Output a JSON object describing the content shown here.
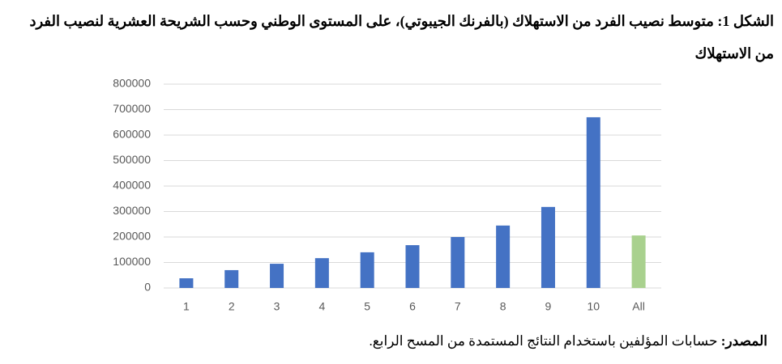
{
  "chart_data": {
    "type": "bar",
    "title_label": "الشكل 1:",
    "title": "متوسط نصيب الفرد من الاستهلاك (بالفرنك الجيبوتي)، على المستوى الوطني وحسب الشريحة العشرية لنصيب الفرد من الاستهلاك",
    "categories": [
      "1",
      "2",
      "3",
      "4",
      "5",
      "6",
      "7",
      "8",
      "9",
      "10",
      "All"
    ],
    "values": [
      38000,
      70000,
      95000,
      117000,
      140000,
      168000,
      200000,
      245000,
      318000,
      670000,
      206000
    ],
    "colors": [
      "#4472c4",
      "#4472c4",
      "#4472c4",
      "#4472c4",
      "#4472c4",
      "#4472c4",
      "#4472c4",
      "#4472c4",
      "#4472c4",
      "#4472c4",
      "#a9d18e"
    ],
    "ylim": [
      0,
      800000
    ],
    "yticks": [
      0,
      100000,
      200000,
      300000,
      400000,
      500000,
      600000,
      700000,
      800000
    ],
    "grid": true,
    "source_label": "المصدر:",
    "source": "حسابات المؤلفين باستخدام النتائج المستمدة من المسح الرابع."
  }
}
